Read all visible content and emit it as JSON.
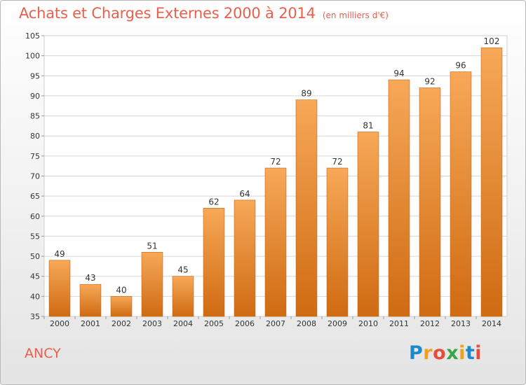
{
  "header": {
    "title": "Achats et Charges Externes 2000 à 2014",
    "unit": "(en milliers d'€)"
  },
  "footer": {
    "commune": "ANCY",
    "brand_letters": [
      "P",
      "r",
      "o",
      "x",
      "i",
      "t",
      "i"
    ],
    "brand_colors": [
      "#1e88c8",
      "#f0a020",
      "#e84c3c",
      "#3aa64a",
      "#f0a020",
      "#1e88c8",
      "#e84c3c"
    ]
  },
  "chart_data": {
    "type": "bar",
    "categories": [
      "2000",
      "2001",
      "2002",
      "2003",
      "2004",
      "2005",
      "2006",
      "2007",
      "2008",
      "2009",
      "2010",
      "2011",
      "2012",
      "2013",
      "2014"
    ],
    "values": [
      49,
      43,
      40,
      51,
      45,
      62,
      64,
      72,
      89,
      72,
      81,
      94,
      92,
      96,
      102
    ],
    "data_labels": [
      "49",
      "43",
      "40",
      "51",
      "45",
      "62",
      "64",
      "72",
      "89",
      "72",
      "81",
      "94",
      "92",
      "96",
      "102"
    ],
    "yticks": [
      35,
      40,
      45,
      50,
      55,
      60,
      65,
      70,
      75,
      80,
      85,
      90,
      95,
      100,
      105
    ],
    "ylim": [
      35,
      105
    ],
    "grid": true,
    "colors": {
      "bar_top": "#f7a858",
      "bar_bottom": "#cf6b12",
      "bar_edge": "#c56410",
      "grid": "#d6d6d6",
      "label": "#333333"
    }
  }
}
